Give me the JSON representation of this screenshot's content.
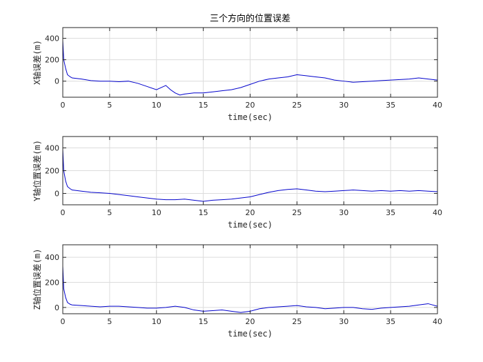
{
  "chart_data": [
    {
      "type": "line",
      "title": "三个方向的位置误差",
      "xlabel": "time(sec)",
      "ylabel": "X轴误差(m)",
      "xlim": [
        0,
        40
      ],
      "ylim": [
        -150,
        500
      ],
      "xticks": [
        0,
        5,
        10,
        15,
        20,
        25,
        30,
        35,
        40
      ],
      "yticks": [
        0,
        200,
        400
      ],
      "grid": true,
      "series": [
        {
          "color": "#0000cc",
          "x": [
            0,
            0.1,
            0.3,
            0.5,
            0.8,
            1,
            2,
            3,
            4,
            5,
            6,
            7,
            8,
            9,
            10,
            11,
            11.5,
            12,
            12.5,
            13,
            14,
            15,
            16,
            17,
            18,
            19,
            20,
            21,
            22,
            23,
            24,
            25,
            26,
            27,
            28,
            29,
            30,
            31,
            32,
            33,
            34,
            35,
            36,
            37,
            38,
            39,
            40
          ],
          "y": [
            380,
            200,
            120,
            60,
            40,
            30,
            20,
            5,
            0,
            0,
            -5,
            0,
            -20,
            -50,
            -80,
            -40,
            -80,
            -110,
            -130,
            -120,
            -110,
            -110,
            -100,
            -90,
            -80,
            -60,
            -30,
            0,
            20,
            30,
            40,
            60,
            50,
            40,
            30,
            10,
            0,
            -10,
            -5,
            0,
            5,
            10,
            15,
            20,
            30,
            20,
            10
          ]
        }
      ]
    },
    {
      "type": "line",
      "xlabel": "time(sec)",
      "ylabel": "Y轴位置误差(m)",
      "xlim": [
        0,
        40
      ],
      "ylim": [
        -100,
        500
      ],
      "xticks": [
        0,
        5,
        10,
        15,
        20,
        25,
        30,
        35,
        40
      ],
      "yticks": [
        0,
        200,
        400
      ],
      "grid": true,
      "series": [
        {
          "color": "#0000cc",
          "x": [
            0,
            0.1,
            0.3,
            0.5,
            0.8,
            1,
            2,
            3,
            4,
            5,
            6,
            7,
            8,
            9,
            10,
            11,
            12,
            13,
            14,
            15,
            16,
            17,
            18,
            19,
            20,
            21,
            22,
            23,
            24,
            25,
            26,
            27,
            28,
            29,
            30,
            31,
            32,
            33,
            34,
            35,
            36,
            37,
            38,
            39,
            40
          ],
          "y": [
            390,
            200,
            110,
            60,
            40,
            30,
            20,
            10,
            5,
            0,
            -10,
            -20,
            -30,
            -40,
            -50,
            -55,
            -55,
            -50,
            -60,
            -70,
            -60,
            -55,
            -50,
            -40,
            -30,
            -10,
            10,
            25,
            35,
            40,
            30,
            20,
            15,
            20,
            25,
            30,
            25,
            20,
            25,
            20,
            25,
            20,
            25,
            20,
            15
          ]
        }
      ]
    },
    {
      "type": "line",
      "xlabel": "time(sec)",
      "ylabel": "Z轴位置误差(m)",
      "xlim": [
        0,
        40
      ],
      "ylim": [
        -50,
        500
      ],
      "xticks": [
        0,
        5,
        10,
        15,
        20,
        25,
        30,
        35,
        40
      ],
      "yticks": [
        0,
        200,
        400
      ],
      "grid": true,
      "series": [
        {
          "color": "#0000cc",
          "x": [
            0,
            0.1,
            0.3,
            0.5,
            0.8,
            1,
            2,
            3,
            4,
            5,
            6,
            7,
            8,
            9,
            10,
            11,
            12,
            13,
            14,
            15,
            16,
            17,
            18,
            19,
            20,
            21,
            22,
            23,
            24,
            25,
            26,
            27,
            28,
            29,
            30,
            31,
            32,
            33,
            34,
            35,
            36,
            37,
            38,
            39,
            40
          ],
          "y": [
            330,
            150,
            80,
            40,
            25,
            20,
            15,
            10,
            5,
            10,
            10,
            5,
            0,
            -5,
            -5,
            0,
            10,
            0,
            -20,
            -30,
            -25,
            -20,
            -30,
            -40,
            -30,
            -10,
            0,
            5,
            10,
            15,
            5,
            0,
            -10,
            -5,
            0,
            0,
            -10,
            -15,
            -5,
            0,
            5,
            10,
            20,
            30,
            10
          ]
        }
      ]
    }
  ]
}
